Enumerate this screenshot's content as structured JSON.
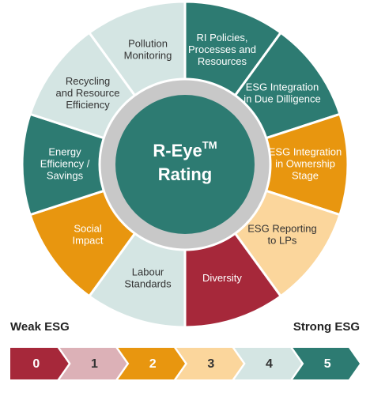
{
  "wheel": {
    "center": {
      "line1": "R-Eye",
      "tm": "TM",
      "line2": "Rating"
    },
    "segments": [
      {
        "lines": [
          "RI Policies,",
          "Processes and",
          "Resources"
        ]
      },
      {
        "lines": [
          "ESG Integration",
          "in Due Dilligence"
        ]
      },
      {
        "lines": [
          "ESG Integration",
          "in Ownership",
          "Stage"
        ]
      },
      {
        "lines": [
          "ESG Reporting",
          "to LPs"
        ]
      },
      {
        "lines": [
          "Diversity"
        ]
      },
      {
        "lines": [
          "Labour",
          "Standards"
        ]
      },
      {
        "lines": [
          "Social",
          "Impact"
        ]
      },
      {
        "lines": [
          "Energy",
          "Efficiency /",
          "Savings"
        ]
      },
      {
        "lines": [
          "Recycling",
          "and Resource",
          "Efficiency"
        ]
      },
      {
        "lines": [
          "Pollution",
          "Monitoring"
        ]
      }
    ]
  },
  "scale": {
    "weak_label": "Weak ESG",
    "strong_label": "Strong ESG",
    "steps": [
      "0",
      "1",
      "2",
      "3",
      "4",
      "5"
    ]
  }
}
